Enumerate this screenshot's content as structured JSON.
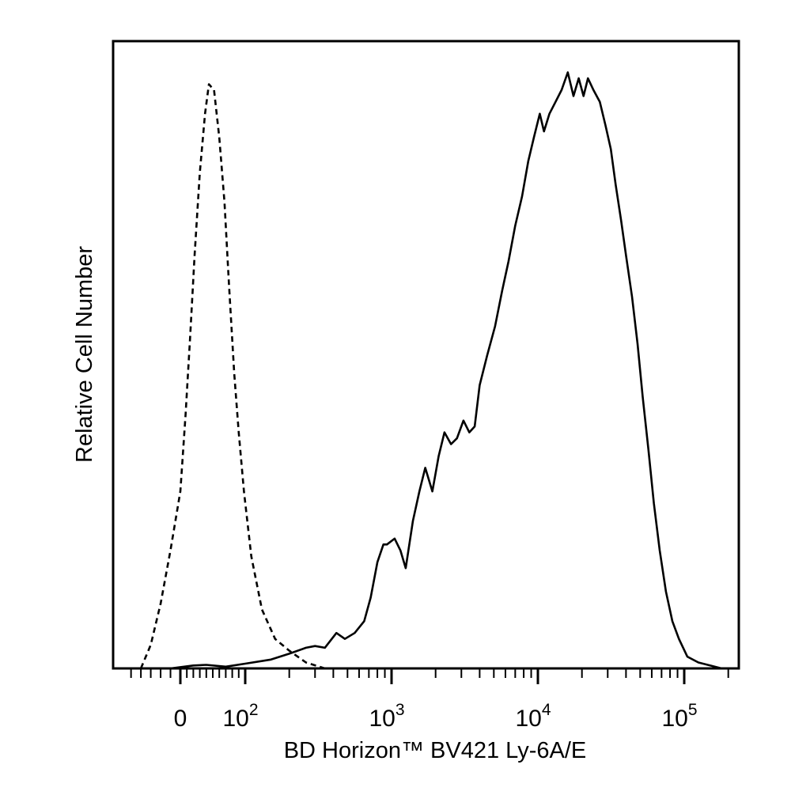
{
  "chart_data": {
    "type": "line",
    "xlabel": "BD Horizon™ BV421 Ly-6A/E",
    "ylabel": "Relative Cell Number",
    "x_scale": "biexponential",
    "xlim": [
      -60,
      200000
    ],
    "ylim": [
      0,
      100
    ],
    "x_tick_labels": [
      {
        "value": 0,
        "base": "0",
        "exp": ""
      },
      {
        "value": 100,
        "base": "10",
        "exp": "2"
      },
      {
        "value": 1000,
        "base": "10",
        "exp": "3"
      },
      {
        "value": 10000,
        "base": "10",
        "exp": "4"
      },
      {
        "value": 100000,
        "base": "10",
        "exp": "5"
      }
    ],
    "grid": false,
    "series": [
      {
        "style": "dashed",
        "color": "#000000",
        "points": [
          [
            -40,
            0
          ],
          [
            -30,
            4
          ],
          [
            -20,
            11
          ],
          [
            -10,
            20
          ],
          [
            0,
            30
          ],
          [
            8,
            43
          ],
          [
            15,
            56
          ],
          [
            22,
            70
          ],
          [
            30,
            84
          ],
          [
            38,
            94
          ],
          [
            44,
            99
          ],
          [
            52,
            98
          ],
          [
            60,
            90
          ],
          [
            68,
            79
          ],
          [
            75,
            65
          ],
          [
            83,
            50
          ],
          [
            90,
            40
          ],
          [
            98,
            30
          ],
          [
            110,
            19
          ],
          [
            130,
            10
          ],
          [
            160,
            5
          ],
          [
            200,
            3
          ],
          [
            260,
            1
          ],
          [
            350,
            0
          ]
        ]
      },
      {
        "style": "solid",
        "color": "#000000",
        "points": [
          [
            -10,
            0
          ],
          [
            20,
            0.5
          ],
          [
            40,
            0.6
          ],
          [
            70,
            0.3
          ],
          [
            100,
            0.8
          ],
          [
            150,
            1.5
          ],
          [
            200,
            2.5
          ],
          [
            260,
            3.5
          ],
          [
            300,
            3.8
          ],
          [
            350,
            3.5
          ],
          [
            420,
            6
          ],
          [
            480,
            5
          ],
          [
            560,
            6
          ],
          [
            650,
            8
          ],
          [
            720,
            12
          ],
          [
            800,
            18
          ],
          [
            880,
            21
          ],
          [
            930,
            21
          ],
          [
            1050,
            22
          ],
          [
            1150,
            20
          ],
          [
            1250,
            17
          ],
          [
            1400,
            25
          ],
          [
            1550,
            30
          ],
          [
            1700,
            34
          ],
          [
            1900,
            30
          ],
          [
            2100,
            36
          ],
          [
            2300,
            40
          ],
          [
            2550,
            38
          ],
          [
            2800,
            39
          ],
          [
            3100,
            42
          ],
          [
            3400,
            40
          ],
          [
            3700,
            41
          ],
          [
            4000,
            48
          ],
          [
            4500,
            53
          ],
          [
            5100,
            58
          ],
          [
            5700,
            64
          ],
          [
            6300,
            69
          ],
          [
            7000,
            75
          ],
          [
            7800,
            80
          ],
          [
            8600,
            86
          ],
          [
            9400,
            90
          ],
          [
            10300,
            94
          ],
          [
            11000,
            91
          ],
          [
            12000,
            94
          ],
          [
            13200,
            96
          ],
          [
            14500,
            98
          ],
          [
            16000,
            101
          ],
          [
            17500,
            97
          ],
          [
            19000,
            100
          ],
          [
            20500,
            97
          ],
          [
            22000,
            100
          ],
          [
            24000,
            98
          ],
          [
            26500,
            96
          ],
          [
            29000,
            92
          ],
          [
            31500,
            88
          ],
          [
            34000,
            82
          ],
          [
            37000,
            76
          ],
          [
            40000,
            70
          ],
          [
            44000,
            63
          ],
          [
            48000,
            55
          ],
          [
            52000,
            46
          ],
          [
            57000,
            37
          ],
          [
            62000,
            28
          ],
          [
            68000,
            20
          ],
          [
            75000,
            13
          ],
          [
            83000,
            8
          ],
          [
            92000,
            5
          ],
          [
            105000,
            2
          ],
          [
            125000,
            1
          ],
          [
            150000,
            0.5
          ],
          [
            180000,
            0
          ]
        ]
      }
    ]
  }
}
